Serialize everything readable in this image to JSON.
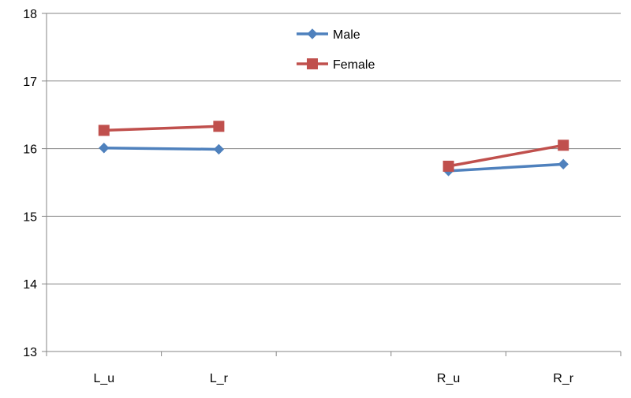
{
  "chart_data": {
    "type": "line",
    "title": "",
    "xlabel": "",
    "ylabel": "",
    "categories": [
      "L_u",
      "L_r",
      "",
      "R_u",
      "R_r"
    ],
    "ylim": [
      13,
      18
    ],
    "yticks": [
      "13",
      "14",
      "15",
      "16",
      "17",
      "18"
    ],
    "grid": "horizontal",
    "legend": "top-center",
    "series": [
      {
        "name": "Male",
        "color": "#4F81BD",
        "marker": "diamond",
        "values": [
          16.01,
          15.99,
          null,
          15.67,
          15.77
        ]
      },
      {
        "name": "Female",
        "color": "#C0504D",
        "marker": "square",
        "values": [
          16.27,
          16.33,
          null,
          15.74,
          16.05
        ]
      }
    ]
  }
}
